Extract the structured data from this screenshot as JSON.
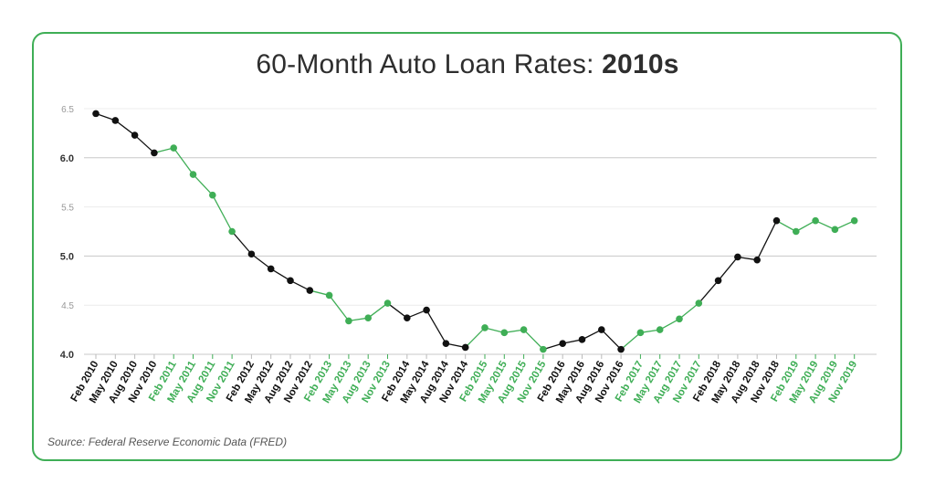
{
  "chart_data": {
    "type": "line",
    "title_plain": "60-Month Auto Loan Rates:",
    "title_bold": "2010s",
    "xlabel": "",
    "ylabel": "",
    "ylim": [
      4.0,
      6.5
    ],
    "yticks": [
      {
        "value": 4.0,
        "label": "4.0",
        "major": true
      },
      {
        "value": 4.5,
        "label": "4.5",
        "major": false
      },
      {
        "value": 5.0,
        "label": "5.0",
        "major": true
      },
      {
        "value": 5.5,
        "label": "5.5",
        "major": false
      },
      {
        "value": 6.0,
        "label": "6.0",
        "major": true
      },
      {
        "value": 6.5,
        "label": "6.5",
        "major": false
      }
    ],
    "categories": [
      "Feb 2010",
      "May 2010",
      "Aug 2010",
      "Nov 2010",
      "Feb 2011",
      "May 2011",
      "Aug 2011",
      "Nov 2011",
      "Feb 2012",
      "May 2012",
      "Aug 2012",
      "Nov 2012",
      "Feb 2013",
      "May 2013",
      "Aug 2013",
      "Nov 2013",
      "Feb 2014",
      "May 2014",
      "Aug 2014",
      "Nov 2014",
      "Feb 2015",
      "May 2015",
      "Aug 2015",
      "Nov 2015",
      "Feb 2016",
      "May 2016",
      "Aug 2016",
      "Nov 2016",
      "Feb 2017",
      "May 2017",
      "Aug 2017",
      "Nov 2017",
      "Feb 2018",
      "May 2018",
      "Aug 2018",
      "Nov 2018",
      "Feb 2019",
      "May 2019",
      "Aug 2019",
      "Nov 2019"
    ],
    "values": [
      6.45,
      6.38,
      6.23,
      6.05,
      6.1,
      5.83,
      5.62,
      5.25,
      5.02,
      4.87,
      4.75,
      4.65,
      4.6,
      4.34,
      4.37,
      4.52,
      4.37,
      4.45,
      4.11,
      4.07,
      4.27,
      4.22,
      4.25,
      4.05,
      4.11,
      4.15,
      4.25,
      4.05,
      4.22,
      4.25,
      4.36,
      4.52,
      4.75,
      4.99,
      4.96,
      5.36,
      5.25,
      5.36,
      5.27,
      5.36
    ],
    "highlight_years": [
      "2011",
      "2013",
      "2015",
      "2017",
      "2019"
    ],
    "colors": {
      "black": "#111111",
      "green": "#3fae56",
      "grid_major": "#c8c8c8",
      "grid_minor": "#ececec",
      "axis_label": "#333333",
      "axis_label_minor": "#999999",
      "border": "#3fae56"
    },
    "grid": true,
    "legend": "none"
  },
  "source_text": "Source: Federal Reserve Economic Data (FRED)"
}
